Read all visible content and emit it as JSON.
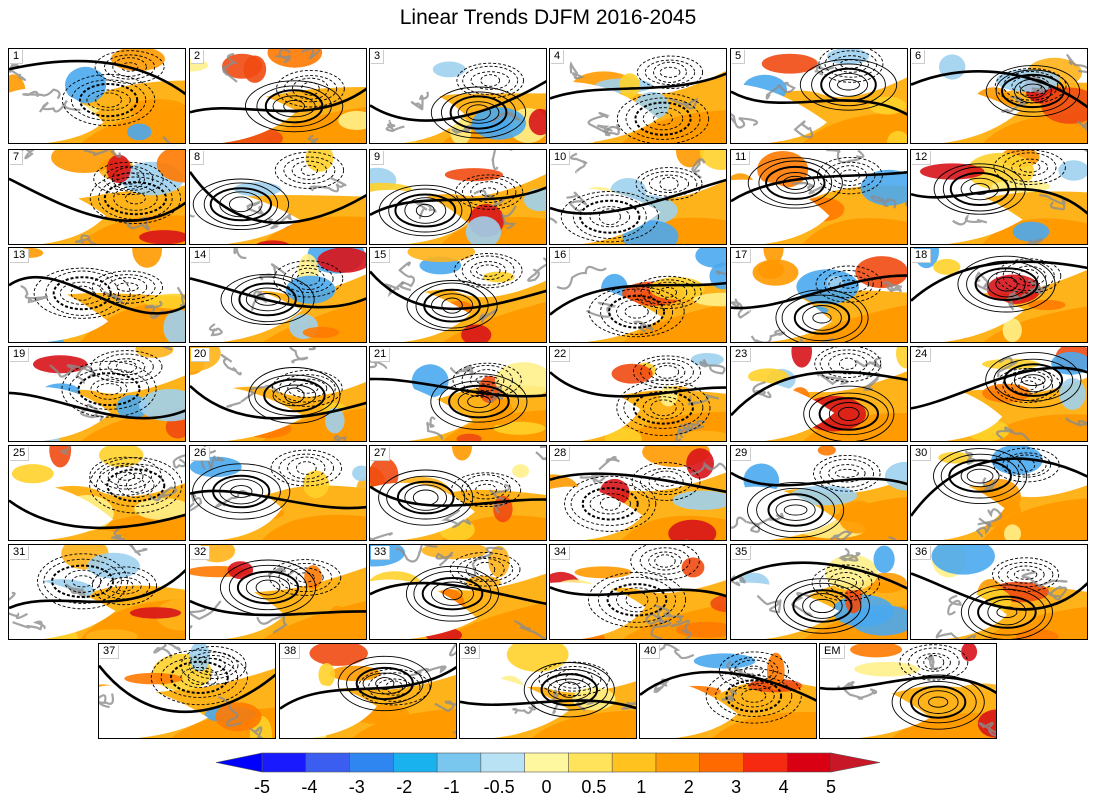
{
  "title": "Linear Trends DJFM 2016-2045",
  "panel_labels": [
    "1",
    "2",
    "3",
    "4",
    "5",
    "6",
    "7",
    "8",
    "9",
    "10",
    "11",
    "12",
    "13",
    "14",
    "15",
    "16",
    "17",
    "18",
    "19",
    "20",
    "21",
    "22",
    "23",
    "24",
    "25",
    "26",
    "27",
    "28",
    "29",
    "30",
    "31",
    "32",
    "33",
    "34",
    "35",
    "36",
    "37",
    "38",
    "39",
    "40",
    "EM"
  ],
  "colorbar": {
    "tick_labels": [
      "-5",
      "-4",
      "-3",
      "-2",
      "-1",
      "-0.5",
      "0",
      "0.5",
      "1",
      "2",
      "3",
      "4",
      "5"
    ],
    "colors": [
      "#1a1aff",
      "#3b5ef0",
      "#2f86f0",
      "#1ab2ee",
      "#79c7ee",
      "#b9e2f5",
      "#fff7a0",
      "#ffe35a",
      "#ffc21f",
      "#ff9a00",
      "#ff6a00",
      "#f52a10",
      "#d80012"
    ],
    "low_arrow_color": "#0000ff",
    "high_arrow_color": "#c81828"
  }
}
